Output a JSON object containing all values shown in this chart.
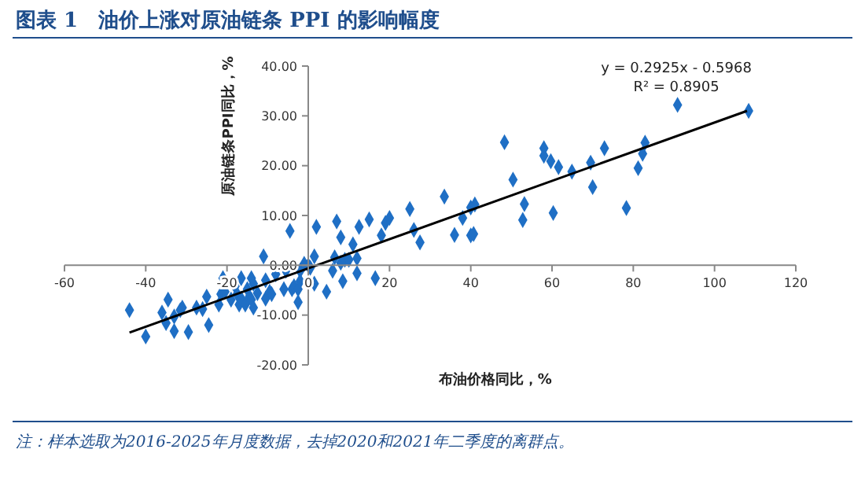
{
  "chart_data": {
    "type": "scatter",
    "title": "图表 1　油价上涨对原油链条 PPI 的影响幅度",
    "xlabel": "布油价格同比，%",
    "ylabel": "原油链条PPI同比，%",
    "annotations": [
      "y = 0.2925x - 0.5968",
      "R² = 0.8905",
      "注：样本选取为2016-2025年月度数据，去掉2020和2021年二季度的离群点。"
    ],
    "xlim": [
      -60,
      120
    ],
    "xticks": [
      -60,
      -40,
      -20,
      0,
      20,
      40,
      60,
      80,
      100,
      120
    ],
    "ylim": [
      -20,
      40
    ],
    "yticks": [
      {
        "value": -20,
        "label": "-20.00"
      },
      {
        "value": -10,
        "label": "-10.00"
      },
      {
        "value": 0,
        "label": "0.00"
      },
      {
        "value": 10,
        "label": "10.00"
      },
      {
        "value": 20,
        "label": "20.00"
      },
      {
        "value": 30,
        "label": "30.00"
      },
      {
        "value": 40,
        "label": "40.00"
      }
    ],
    "grid": false,
    "series": [
      {
        "color": "#1f6fc5",
        "marker": "diamond",
        "x": [
          -44,
          -40,
          -36,
          -34.5,
          -35,
          -33,
          -33,
          -31.5,
          -31,
          -29.5,
          -27.5,
          -26,
          -25,
          -24.5,
          -22,
          -21.5,
          -21,
          -20.5,
          -19,
          -18,
          -17.5,
          -17,
          -16.5,
          -16.5,
          -15.5,
          -15,
          -14.5,
          -14,
          -14,
          -13.5,
          -13.5,
          -12.5,
          -11,
          -10.5,
          -10.5,
          -9.5,
          -9,
          -8,
          -6,
          -5.5,
          -4.5,
          -4,
          -3.5,
          -2.5,
          -2.5,
          -2,
          -2,
          -1,
          0,
          0.5,
          1.5,
          1.5,
          2,
          4.5,
          6,
          6.5,
          7,
          8,
          8,
          8.5,
          9,
          10,
          11,
          12,
          12,
          12.5,
          15,
          16.5,
          18,
          19,
          20,
          25,
          26,
          27.5,
          33.5,
          36,
          38,
          40,
          40,
          40.7,
          41,
          48.3,
          50.4,
          52.8,
          53.2,
          58,
          58,
          59.7,
          60.3,
          61.6,
          64.9,
          69.5,
          70,
          72.9,
          78.3,
          81.2,
          82.3,
          82.9,
          90.9,
          108.4
        ],
        "values": [
          -9,
          -14.3,
          -9.5,
          -6.9,
          -11.6,
          -10.3,
          -13.2,
          -9,
          -8.5,
          -13.4,
          -8.5,
          -8.8,
          -6.3,
          -12,
          -7.9,
          -5.8,
          -2.6,
          -5.3,
          -6.9,
          -4.2,
          -5.8,
          -7.9,
          -6.7,
          -2.6,
          -7.9,
          -4.8,
          -6.3,
          -2.6,
          -6.9,
          -8.5,
          -3.7,
          -5.6,
          1.8,
          -3,
          -6.7,
          -5.3,
          -5.8,
          -1.8,
          -4.8,
          -1.1,
          6.9,
          -4.8,
          -4.2,
          -7.4,
          -4.8,
          -3.2,
          -1.1,
          0.3,
          0,
          -0.5,
          1.8,
          -3.7,
          7.7,
          -5.3,
          -1.1,
          1.6,
          8.8,
          5.6,
          0.5,
          -3.2,
          1.1,
          1.1,
          4.2,
          1.4,
          -1.6,
          7.7,
          9.2,
          -2.6,
          6,
          8.5,
          9.5,
          11.3,
          7.1,
          4.6,
          13.8,
          6.1,
          9.5,
          11.6,
          6,
          6.3,
          12.2,
          24.7,
          17.2,
          9.1,
          12.3,
          23.5,
          22,
          20.9,
          10.5,
          19.7,
          18.8,
          20.6,
          15.7,
          23.5,
          11.5,
          19.5,
          22.4,
          24.6,
          32.2,
          31
        ]
      },
      {
        "type": "line",
        "color": "#000000",
        "x": [
          -44,
          108
        ],
        "values": [
          -13.5,
          31
        ]
      }
    ]
  }
}
